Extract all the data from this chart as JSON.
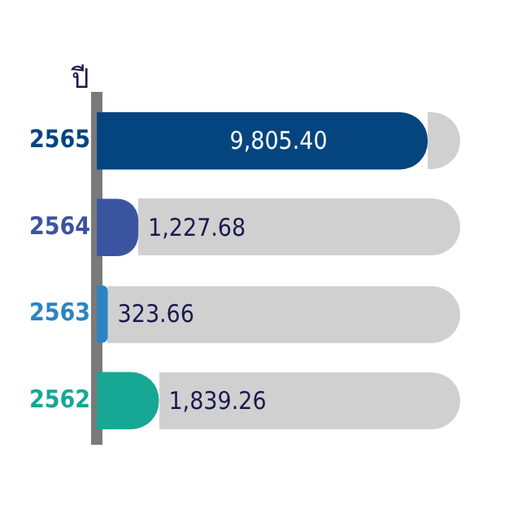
{
  "chart_data": {
    "type": "bar",
    "orientation": "horizontal",
    "title": "ปี",
    "categories": [
      "2565",
      "2564",
      "2563",
      "2562"
    ],
    "values": [
      9805.4,
      1227.68,
      323.66,
      1839.26
    ],
    "colors": [
      "#05457f",
      "#3b54a0",
      "#2a84c4",
      "#16a894"
    ],
    "value_labels": [
      "9,805.40",
      "1,227.68",
      "323.66",
      "1,839.26"
    ],
    "legend": false
  }
}
